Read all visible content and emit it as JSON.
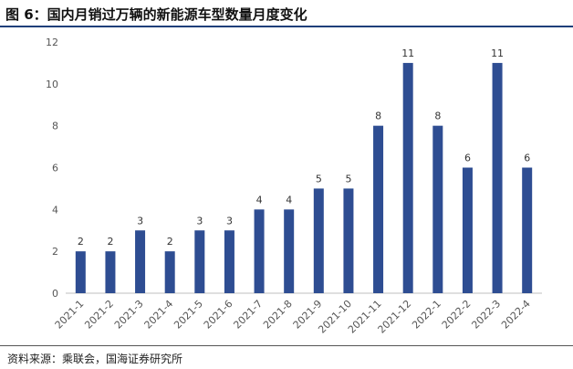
{
  "figure": {
    "title": "图 6：国内月销过万辆的新能源车型数量月度变化",
    "source": "资料来源：乘联会，国海证券研究所"
  },
  "chart_data": {
    "type": "bar",
    "title": "",
    "xlabel": "",
    "ylabel": "",
    "categories": [
      "2021-1",
      "2021-2",
      "2021-3",
      "2021-4",
      "2021-5",
      "2021-6",
      "2021-7",
      "2021-8",
      "2021-9",
      "2021-10",
      "2021-11",
      "2021-12",
      "2022-1",
      "2022-2",
      "2022-3",
      "2022-4"
    ],
    "values": [
      2,
      2,
      3,
      2,
      3,
      3,
      4,
      4,
      5,
      5,
      8,
      11,
      8,
      6,
      11,
      6
    ],
    "ylim": [
      0,
      12
    ],
    "yticks": [
      0,
      2,
      4,
      6,
      8,
      10,
      12
    ],
    "grid": false,
    "legend": "none",
    "bar_color": "#2e4d92",
    "data_labels": true
  }
}
